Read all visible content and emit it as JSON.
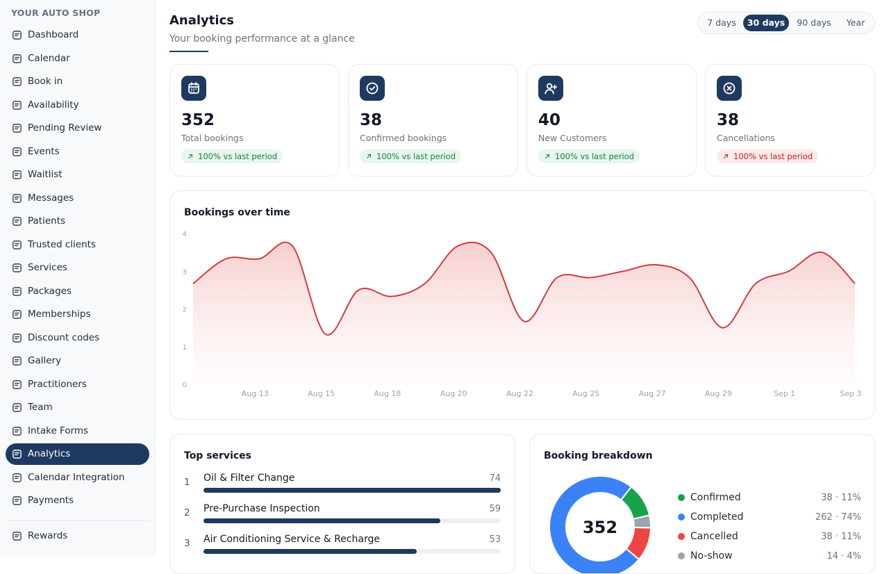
{
  "sidebar": {
    "brand": "YOUR AUTO SHOP",
    "items": [
      "Dashboard",
      "Calendar",
      "Book in",
      "Availability",
      "Pending Review",
      "Events",
      "Waitlist",
      "Messages",
      "Patients",
      "Trusted clients",
      "Services",
      "Packages",
      "Memberships",
      "Discount codes",
      "Gallery",
      "Practitioners",
      "Team",
      "Intake Forms",
      "Analytics",
      "Calendar Integration",
      "Payments"
    ],
    "active": "Analytics",
    "footer_items": [
      "Rewards"
    ]
  },
  "header": {
    "title": "Analytics",
    "subtitle": "Your booking performance at a glance",
    "ranges": [
      "7 days",
      "30 days",
      "90 days",
      "Year"
    ],
    "active_range": "30 days"
  },
  "stats": [
    {
      "value": 352,
      "label": "Total bookings",
      "change": "100% vs last period",
      "trend": "positive"
    },
    {
      "value": 38,
      "label": "Confirmed bookings",
      "change": "100% vs last period",
      "trend": "positive"
    },
    {
      "value": 40,
      "label": "New Customers",
      "change": "100% vs last period",
      "trend": "positive"
    },
    {
      "value": 38,
      "label": "Cancellations",
      "change": "100% vs last period",
      "trend": "negative"
    }
  ],
  "chart_data": {
    "type": "line",
    "title": "Bookings over time",
    "categories": [
      null,
      null,
      "Aug 13",
      null,
      "Aug 15",
      null,
      "Aug 18",
      null,
      "Aug 20",
      null,
      "Aug 22",
      null,
      "Aug 25",
      null,
      "Aug 27",
      null,
      "Aug 29",
      null,
      "Sep 1",
      null,
      "Sep 3"
    ],
    "values": [
      2.67,
      3.33,
      3.33,
      3.67,
      1.33,
      2.5,
      2.33,
      2.67,
      3.67,
      3.5,
      1.67,
      2.83,
      2.83,
      3.0,
      3.17,
      2.83,
      1.5,
      2.67,
      3.0,
      3.5,
      2.67
    ],
    "color": "#d33b3b",
    "ylim": [
      0,
      4
    ],
    "yticks": [
      0,
      1,
      2,
      3,
      4
    ]
  },
  "top_services": {
    "title": "Top services",
    "items": [
      {
        "rank": 1,
        "name": "Oil & Filter Change",
        "value": 74
      },
      {
        "rank": 2,
        "name": "Pre-Purchase Inspection",
        "value": 59
      },
      {
        "rank": 3,
        "name": "Air Conditioning Service & Recharge",
        "value": 53
      }
    ]
  },
  "breakdown": {
    "title": "Booking breakdown",
    "total": 352,
    "items": [
      {
        "name": "Confirmed",
        "color": "#16a34a",
        "value": 38,
        "value_label": "38 · 11%"
      },
      {
        "name": "Completed",
        "color": "#3b82f6",
        "value": 262,
        "value_label": "262 · 74%"
      },
      {
        "name": "Cancelled",
        "color": "#ef4444",
        "value": 38,
        "value_label": "38 · 11%"
      },
      {
        "name": "No-show",
        "color": "#9ca3af",
        "value": 14,
        "value_label": "14 · 4%"
      }
    ]
  }
}
